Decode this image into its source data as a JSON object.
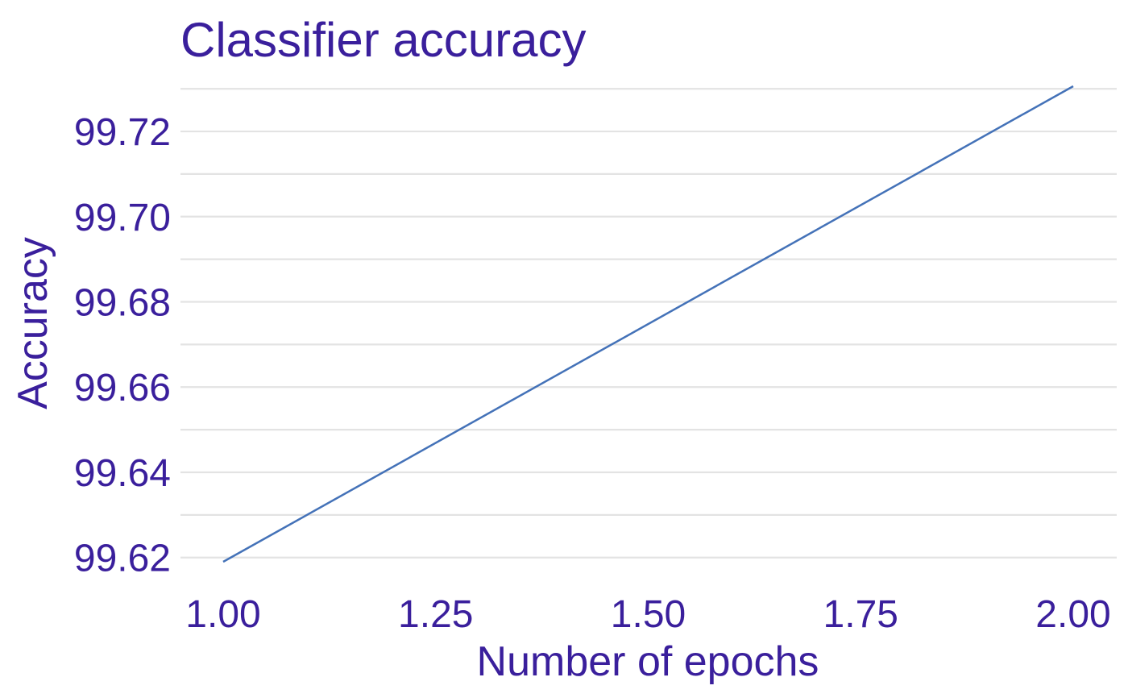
{
  "chart_data": {
    "type": "line",
    "title": "Classifier accuracy",
    "xlabel": "Number of epochs",
    "ylabel": "Accuracy",
    "x": [
      1.0,
      2.0
    ],
    "series": [
      {
        "values": [
          99.619,
          99.7306
        ]
      }
    ],
    "xlim": [
      1.0,
      2.0
    ],
    "ylim": [
      99.619,
      99.7306
    ],
    "xticks": [
      1.0,
      1.25,
      1.5,
      1.75,
      2.0
    ],
    "xtick_labels": [
      "1.00",
      "1.25",
      "1.50",
      "1.75",
      "2.00"
    ],
    "yticks": [
      99.62,
      99.64,
      99.66,
      99.68,
      99.7,
      99.72
    ],
    "ytick_labels": [
      "99.62",
      "99.64",
      "99.66",
      "99.68",
      "99.70",
      "99.72"
    ],
    "grid": true,
    "legend": false,
    "colors": {
      "text": "#3a1f9c",
      "line": "#4472b8",
      "grid": "#e3e3e3"
    }
  }
}
